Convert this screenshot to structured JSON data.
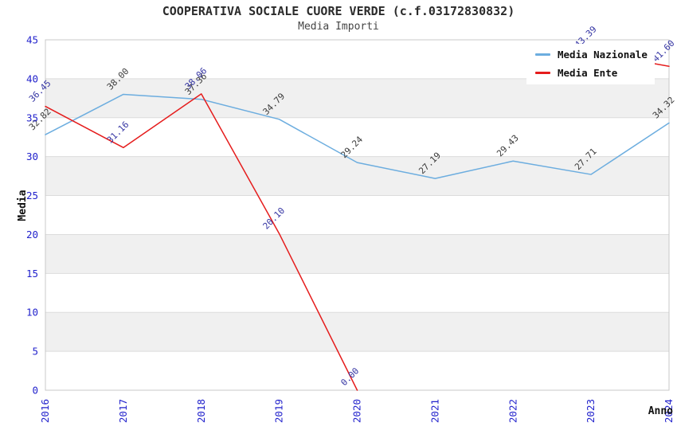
{
  "header": {
    "title": "COOPERATIVA SOCIALE CUORE VERDE (c.f.03172830832)",
    "subtitle": "Media Importi"
  },
  "chart_data": {
    "type": "line",
    "title": "COOPERATIVA SOCIALE CUORE VERDE (c.f.03172830832)",
    "subtitle": "Media Importi",
    "x_categories": [
      "2016",
      "2017",
      "2018",
      "2019",
      "2020",
      "2021",
      "2022",
      "2023",
      "2024"
    ],
    "xlabel": "Anno",
    "ylabel": "Media",
    "ylim": [
      0,
      45
    ],
    "yticks": [
      0,
      5,
      10,
      15,
      20,
      25,
      30,
      35,
      40,
      45
    ],
    "grid": true,
    "banded_background": true,
    "legend_position": "top-right",
    "point_label_rotation": -45,
    "series": [
      {
        "name": "Media Nazionale",
        "color": "#6caddf",
        "label_color": "#3b3b3b",
        "values": [
          32.82,
          38.0,
          37.36,
          34.79,
          29.24,
          27.19,
          29.43,
          27.71,
          34.32
        ]
      },
      {
        "name": "Media Ente",
        "color": "#e51c1c",
        "label_color": "#3434a3",
        "values": [
          36.45,
          31.16,
          38.06,
          20.1,
          0.0,
          null,
          null,
          43.39,
          41.6
        ]
      }
    ]
  },
  "style": {
    "tick_color": "#2222cc",
    "band_color": "#f0f0f0",
    "grid_color": "#dcdcdc",
    "border_color": "#c8c8c8",
    "background": "#ffffff",
    "title_color": "#2b2b2b",
    "subtitle_color": "#454545",
    "axis_label_color": "#111111",
    "legend_background": "#ffffff"
  }
}
